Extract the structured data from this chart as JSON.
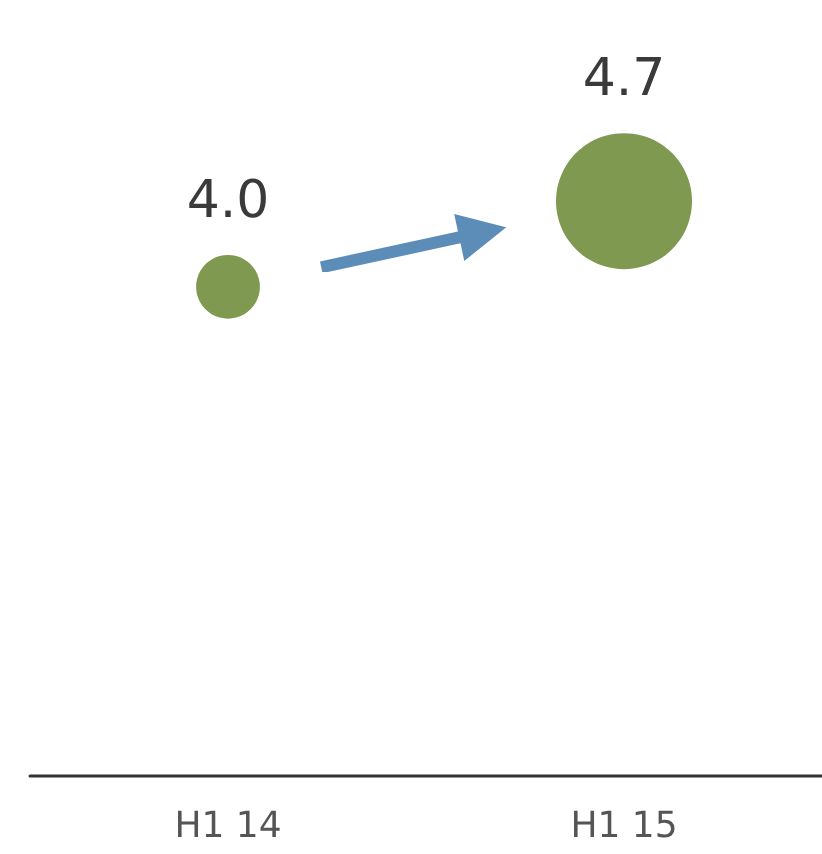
{
  "chart_data": {
    "type": "bubble",
    "categories": [
      "H1 14",
      "H1 15"
    ],
    "values": [
      4.0,
      4.7
    ],
    "sizes": [
      0.22,
      1
    ],
    "color": "#7f9a50",
    "value_labels": [
      "4.0",
      "4.7"
    ],
    "tick_labels": "x",
    "grid": false
  }
}
